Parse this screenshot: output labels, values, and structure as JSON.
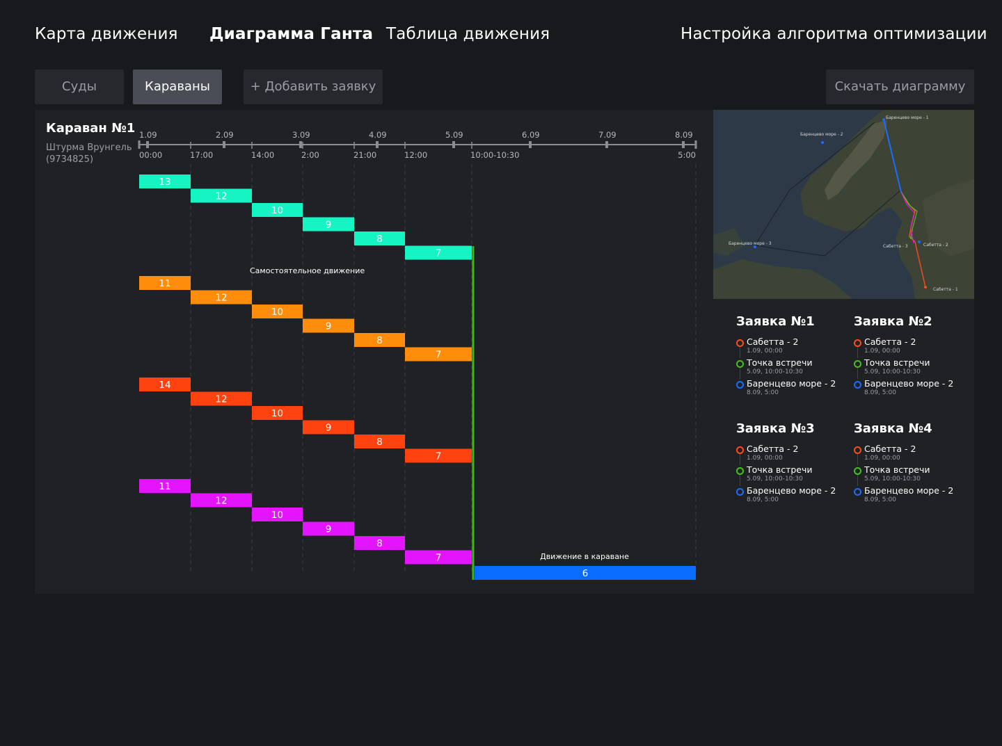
{
  "nav": {
    "map": "Карта движения",
    "gantt": "Диаграмма Ганта",
    "table": "Таблица движения",
    "settings": "Настройка алгоритма оптимизации"
  },
  "toolbar": {
    "ships": "Суды",
    "caravans": "Караваны",
    "add_request": "+ Добавить заявку",
    "download": "Скачать диаграмму"
  },
  "caravan": {
    "title": "Караван №1",
    "vessel_line1": "Штурма Врунгель",
    "vessel_line2": "(9734825)"
  },
  "timeline": {
    "dates": [
      "1.09",
      "2.09",
      "3.09",
      "4.09",
      "5.09",
      "6.09",
      "7.09",
      "8.09"
    ],
    "times": [
      "00:00",
      "17:00",
      "14:00",
      "2:00",
      "21:00",
      "12:00",
      "10:00-10:30",
      "5:00"
    ]
  },
  "labels": {
    "independent": "Самостоятельное движение",
    "in_caravan": "Движение в караване"
  },
  "chart_data": {
    "type": "gantt",
    "groups": [
      {
        "color": "#15f5c3",
        "segments": [
          "13",
          "12",
          "10",
          "9",
          "8",
          "7"
        ]
      },
      {
        "color": "#ff8c0a",
        "segments": [
          "11",
          "12",
          "10",
          "9",
          "8",
          "7"
        ]
      },
      {
        "color": "#ff4310",
        "segments": [
          "14",
          "12",
          "10",
          "9",
          "8",
          "7"
        ]
      },
      {
        "color": "#e514ff",
        "segments": [
          "11",
          "12",
          "10",
          "9",
          "8",
          "7"
        ]
      }
    ],
    "caravan_segment": {
      "label": "6",
      "color": "#0a6cff"
    },
    "meeting_line_color": "#3fb416"
  },
  "map": {
    "labels": {
      "barents1": "Баренцево море - 1",
      "barents2": "Баренцево море - 2",
      "barents3": "Баренцево море - 3",
      "sabetta1": "Сабетта - 1",
      "sabetta2": "Сабетта - 2",
      "sabetta3": "Сабетта - 3"
    }
  },
  "requests": [
    {
      "title": "Заявка №1",
      "stops": [
        {
          "name": "Сабетта - 2",
          "time": "1.09, 00:00",
          "color": "#ff4a1a"
        },
        {
          "name": "Точка встречи",
          "time": "5.09, 10:00-10:30",
          "color": "#43c21a"
        },
        {
          "name": "Баренцево море - 2",
          "time": "8.09, 5:00",
          "color": "#1a6dff"
        }
      ]
    },
    {
      "title": "Заявка №2",
      "stops": [
        {
          "name": "Сабетта - 2",
          "time": "1.09, 00:00",
          "color": "#ff4a1a"
        },
        {
          "name": "Точка встречи",
          "time": "5.09, 10:00-10:30",
          "color": "#43c21a"
        },
        {
          "name": "Баренцево море - 2",
          "time": "8.09, 5:00",
          "color": "#1a6dff"
        }
      ]
    },
    {
      "title": "Заявка №3",
      "stops": [
        {
          "name": "Сабетта - 2",
          "time": "1.09, 00:00",
          "color": "#ff4a1a"
        },
        {
          "name": "Точка встречи",
          "time": "5.09, 10:00-10:30",
          "color": "#43c21a"
        },
        {
          "name": "Баренцево море - 2",
          "time": "8.09, 5:00",
          "color": "#1a6dff"
        }
      ]
    },
    {
      "title": "Заявка №4",
      "stops": [
        {
          "name": "Сабетта - 2",
          "time": "1.09, 00:00",
          "color": "#ff4a1a"
        },
        {
          "name": "Точка встречи",
          "time": "5.09, 10:00-10:30",
          "color": "#43c21a"
        },
        {
          "name": "Баренцево море - 2",
          "time": "8.09, 5:00",
          "color": "#1a6dff"
        }
      ]
    }
  ]
}
